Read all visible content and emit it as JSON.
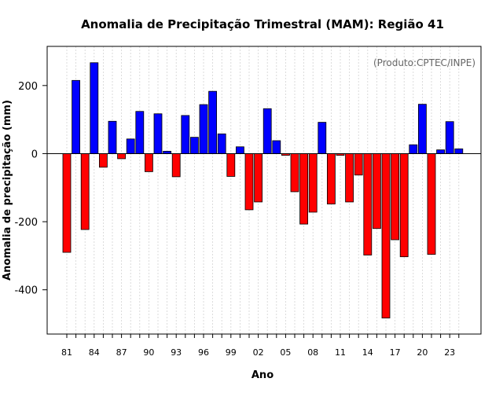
{
  "chart_data": {
    "type": "bar",
    "title": "Anomalia de Precipitação Trimestral (MAM): Região 41",
    "xlabel": "Ano",
    "ylabel": "Anomalia de precipitação (mm)",
    "credit": "(Produto:CPTEC/INPE)",
    "ylim": [
      -530,
      315
    ],
    "yticks": [
      -400,
      -200,
      0,
      200
    ],
    "ytick_labels": [
      "-400",
      "-200",
      "0",
      "200"
    ],
    "xtick_labels": [
      "81",
      "84",
      "87",
      "90",
      "93",
      "96",
      "99",
      "02",
      "05",
      "08",
      "11",
      "14",
      "17",
      "20",
      "23"
    ],
    "xtick_every": 3,
    "grid": true,
    "positive_color": "#0000ff",
    "negative_color": "#ff0000",
    "categories": [
      "1981",
      "1982",
      "1983",
      "1984",
      "1985",
      "1986",
      "1987",
      "1988",
      "1989",
      "1990",
      "1991",
      "1992",
      "1993",
      "1994",
      "1995",
      "1996",
      "1997",
      "1998",
      "1999",
      "2000",
      "2001",
      "2002",
      "2003",
      "2004",
      "2005",
      "2006",
      "2007",
      "2008",
      "2009",
      "2010",
      "2011",
      "2012",
      "2013",
      "2014",
      "2015",
      "2016",
      "2017",
      "2018",
      "2019",
      "2020",
      "2021",
      "2022",
      "2023",
      "2024"
    ],
    "values": [
      -290,
      215,
      -223,
      267,
      -40,
      95,
      -15,
      43,
      124,
      -53,
      117,
      7,
      -68,
      112,
      48,
      144,
      183,
      58,
      -67,
      20,
      -165,
      -142,
      132,
      38,
      -5,
      -112,
      -207,
      -172,
      92,
      -148,
      -5,
      -142,
      -63,
      -298,
      -220,
      -483,
      -253,
      -303,
      26,
      145,
      -296,
      11,
      94,
      14
    ]
  }
}
